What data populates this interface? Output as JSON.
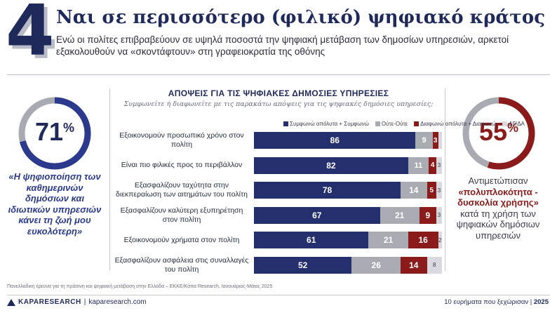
{
  "header": {
    "number": "4",
    "title": "Ναι σε περισσότερο (φιλικό) ψηφιακό κράτος",
    "subtitle": "Ενώ οι πολίτες επιβραβεύουν σε υψηλά ποσοστά την ψηφιακή μετάβαση των δημοσίων υπηρεσιών, αρκετοί εξακολουθούν να «σκοντάφτουν» στη γραφειοκρατία της οθόνης"
  },
  "left_stat": {
    "value": "71",
    "percent_sign": "%",
    "fill_fraction": 0.71,
    "quote": "«Η ψηφιοποίηση των καθημερινών δημόσιων και ιδιωτικών υπηρεσιών κάνει τη ζωή μου ευκολότερη»"
  },
  "right_stat": {
    "value": "55",
    "percent_sign": "%",
    "fill_fraction": 0.55,
    "text_before": "Αντιμετώπισαν",
    "accent": "«πολυπλοκότητα - δυσκολία χρήσης»",
    "text_after": "κατά τη χρήση των ψηφιακών δημόσιων υπηρεσιών"
  },
  "chart_data": {
    "type": "bar",
    "orientation": "horizontal-stacked",
    "title": "ΑΠΟΨΕΙΣ ΓΙΑ ΤΙΣ ΨΗΦΙΑΚΕΣ ΔΗΜΟΣΙΕΣ ΥΠΗΡΕΣΙΕΣ",
    "subtitle": "Συμφωνείτε ή διαφωνείτε με τις παρακάτω απόψεις για τις ψηφιακές δημόσιες υπηρεσίες;",
    "legend_position": "top",
    "grid": false,
    "xlim": [
      0,
      100
    ],
    "categories": [
      "Εξοικονομούν προσωπικό χρόνο στον πολίτη",
      "Είναι πιο φιλικές προς το περιβάλλον",
      "Εξασφαλίζουν ταχύτητα στην διεκπεραίωση των αιτημάτων του πολίτη",
      "Εξασφαλίζουν καλύτερη εξυπηρέτηση στον πολίτη",
      "Εξοικονομούν χρήματα στον πολίτη",
      "Εξασφαλίζουν ασφάλεια στις συναλλαγές του πολίτη"
    ],
    "series": [
      {
        "name": "Συμφωνώ απόλυτα + Συμφωνώ",
        "color": "#24306e",
        "values": [
          86,
          82,
          78,
          67,
          61,
          52
        ]
      },
      {
        "name": "Ούτε-Ούτε",
        "color": "#a9abb3",
        "values": [
          9,
          11,
          14,
          21,
          21,
          26
        ]
      },
      {
        "name": "Διαφωνώ απόλυτα + Διαφωνώ",
        "color": "#8b1a1a",
        "values": [
          3,
          4,
          5,
          9,
          16,
          14
        ]
      },
      {
        "name": "ΔΓ/ΔΑ",
        "color": "#d9dadf",
        "values": [
          2,
          3,
          3,
          3,
          2,
          8
        ]
      }
    ],
    "labels": [
      [
        "86",
        "9",
        "3",
        ""
      ],
      [
        "82",
        "11",
        "4",
        "3"
      ],
      [
        "78",
        "14",
        "5",
        "3"
      ],
      [
        "67",
        "21",
        "9",
        "3"
      ],
      [
        "61",
        "21",
        "16",
        "2"
      ],
      [
        "52",
        "26",
        "14",
        "8"
      ]
    ]
  },
  "footer": {
    "source": "Πανελλαδική έρευνα για τη πράσινη και ψηφιακή μετάβαση στην Ελλάδα – ΕΚΚΕ/Κάπα Research, Ιανουάριος-Μάιος 2025",
    "brand": "KAPA",
    "brand_suffix": "RESEARCH",
    "separator": "|",
    "url": "kaparesearch.com",
    "right_text": "10 ευρήματα που ξεχώρισαν",
    "right_sep": "|",
    "year": "2025"
  },
  "colors": {
    "navy": "#1f2a5a",
    "bar_navy": "#24306e",
    "gray": "#a9abb3",
    "red": "#8b1a1a",
    "light_gray": "#d9dadf",
    "donut_track": "#a9abb3",
    "left_donut": "#2b3a8c",
    "right_donut": "#8b1a1a"
  }
}
